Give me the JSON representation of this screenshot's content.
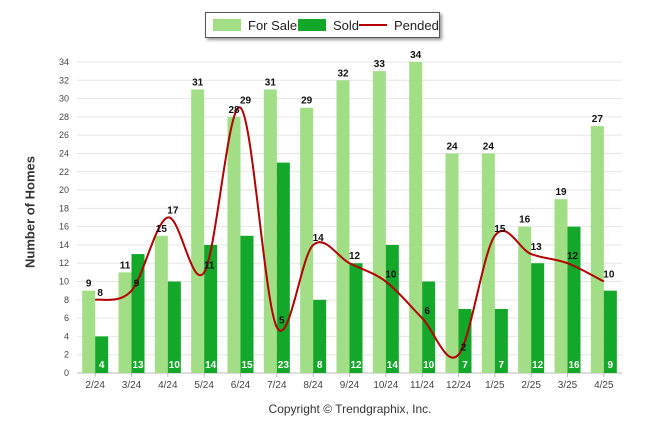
{
  "legend": {
    "for_sale": "For Sale",
    "sold": "Sold",
    "pended": "Pended"
  },
  "footer": {
    "copyright": "Copyright © Trendgraphix, Inc."
  },
  "colors": {
    "for_sale": "#a2de86",
    "sold": "#13a82a",
    "pended": "#b30000",
    "grid": "#e6e6e6"
  },
  "chart_data": {
    "type": "bar",
    "ylabel": "Number of Homes",
    "ylim": [
      0,
      34
    ],
    "yticks": [
      0,
      2,
      4,
      6,
      8,
      10,
      12,
      14,
      16,
      18,
      20,
      22,
      24,
      26,
      28,
      30,
      32,
      34
    ],
    "categories": [
      "2/24",
      "3/24",
      "4/24",
      "5/24",
      "6/24",
      "7/24",
      "8/24",
      "9/24",
      "10/24",
      "11/24",
      "12/24",
      "1/25",
      "2/25",
      "3/25",
      "4/25"
    ],
    "series": [
      {
        "name": "For Sale",
        "kind": "bar",
        "values": [
          9,
          11,
          15,
          31,
          28,
          31,
          29,
          32,
          33,
          34,
          24,
          24,
          16,
          19,
          27
        ]
      },
      {
        "name": "Sold",
        "kind": "bar",
        "values": [
          4,
          13,
          10,
          14,
          15,
          23,
          8,
          12,
          14,
          10,
          7,
          7,
          12,
          16,
          9
        ]
      },
      {
        "name": "Pended",
        "kind": "line",
        "values": [
          8,
          9,
          17,
          11,
          29,
          5,
          14,
          12,
          10,
          6,
          2,
          15,
          13,
          12,
          10
        ]
      }
    ],
    "legend_position": "top-center",
    "grid": true
  }
}
